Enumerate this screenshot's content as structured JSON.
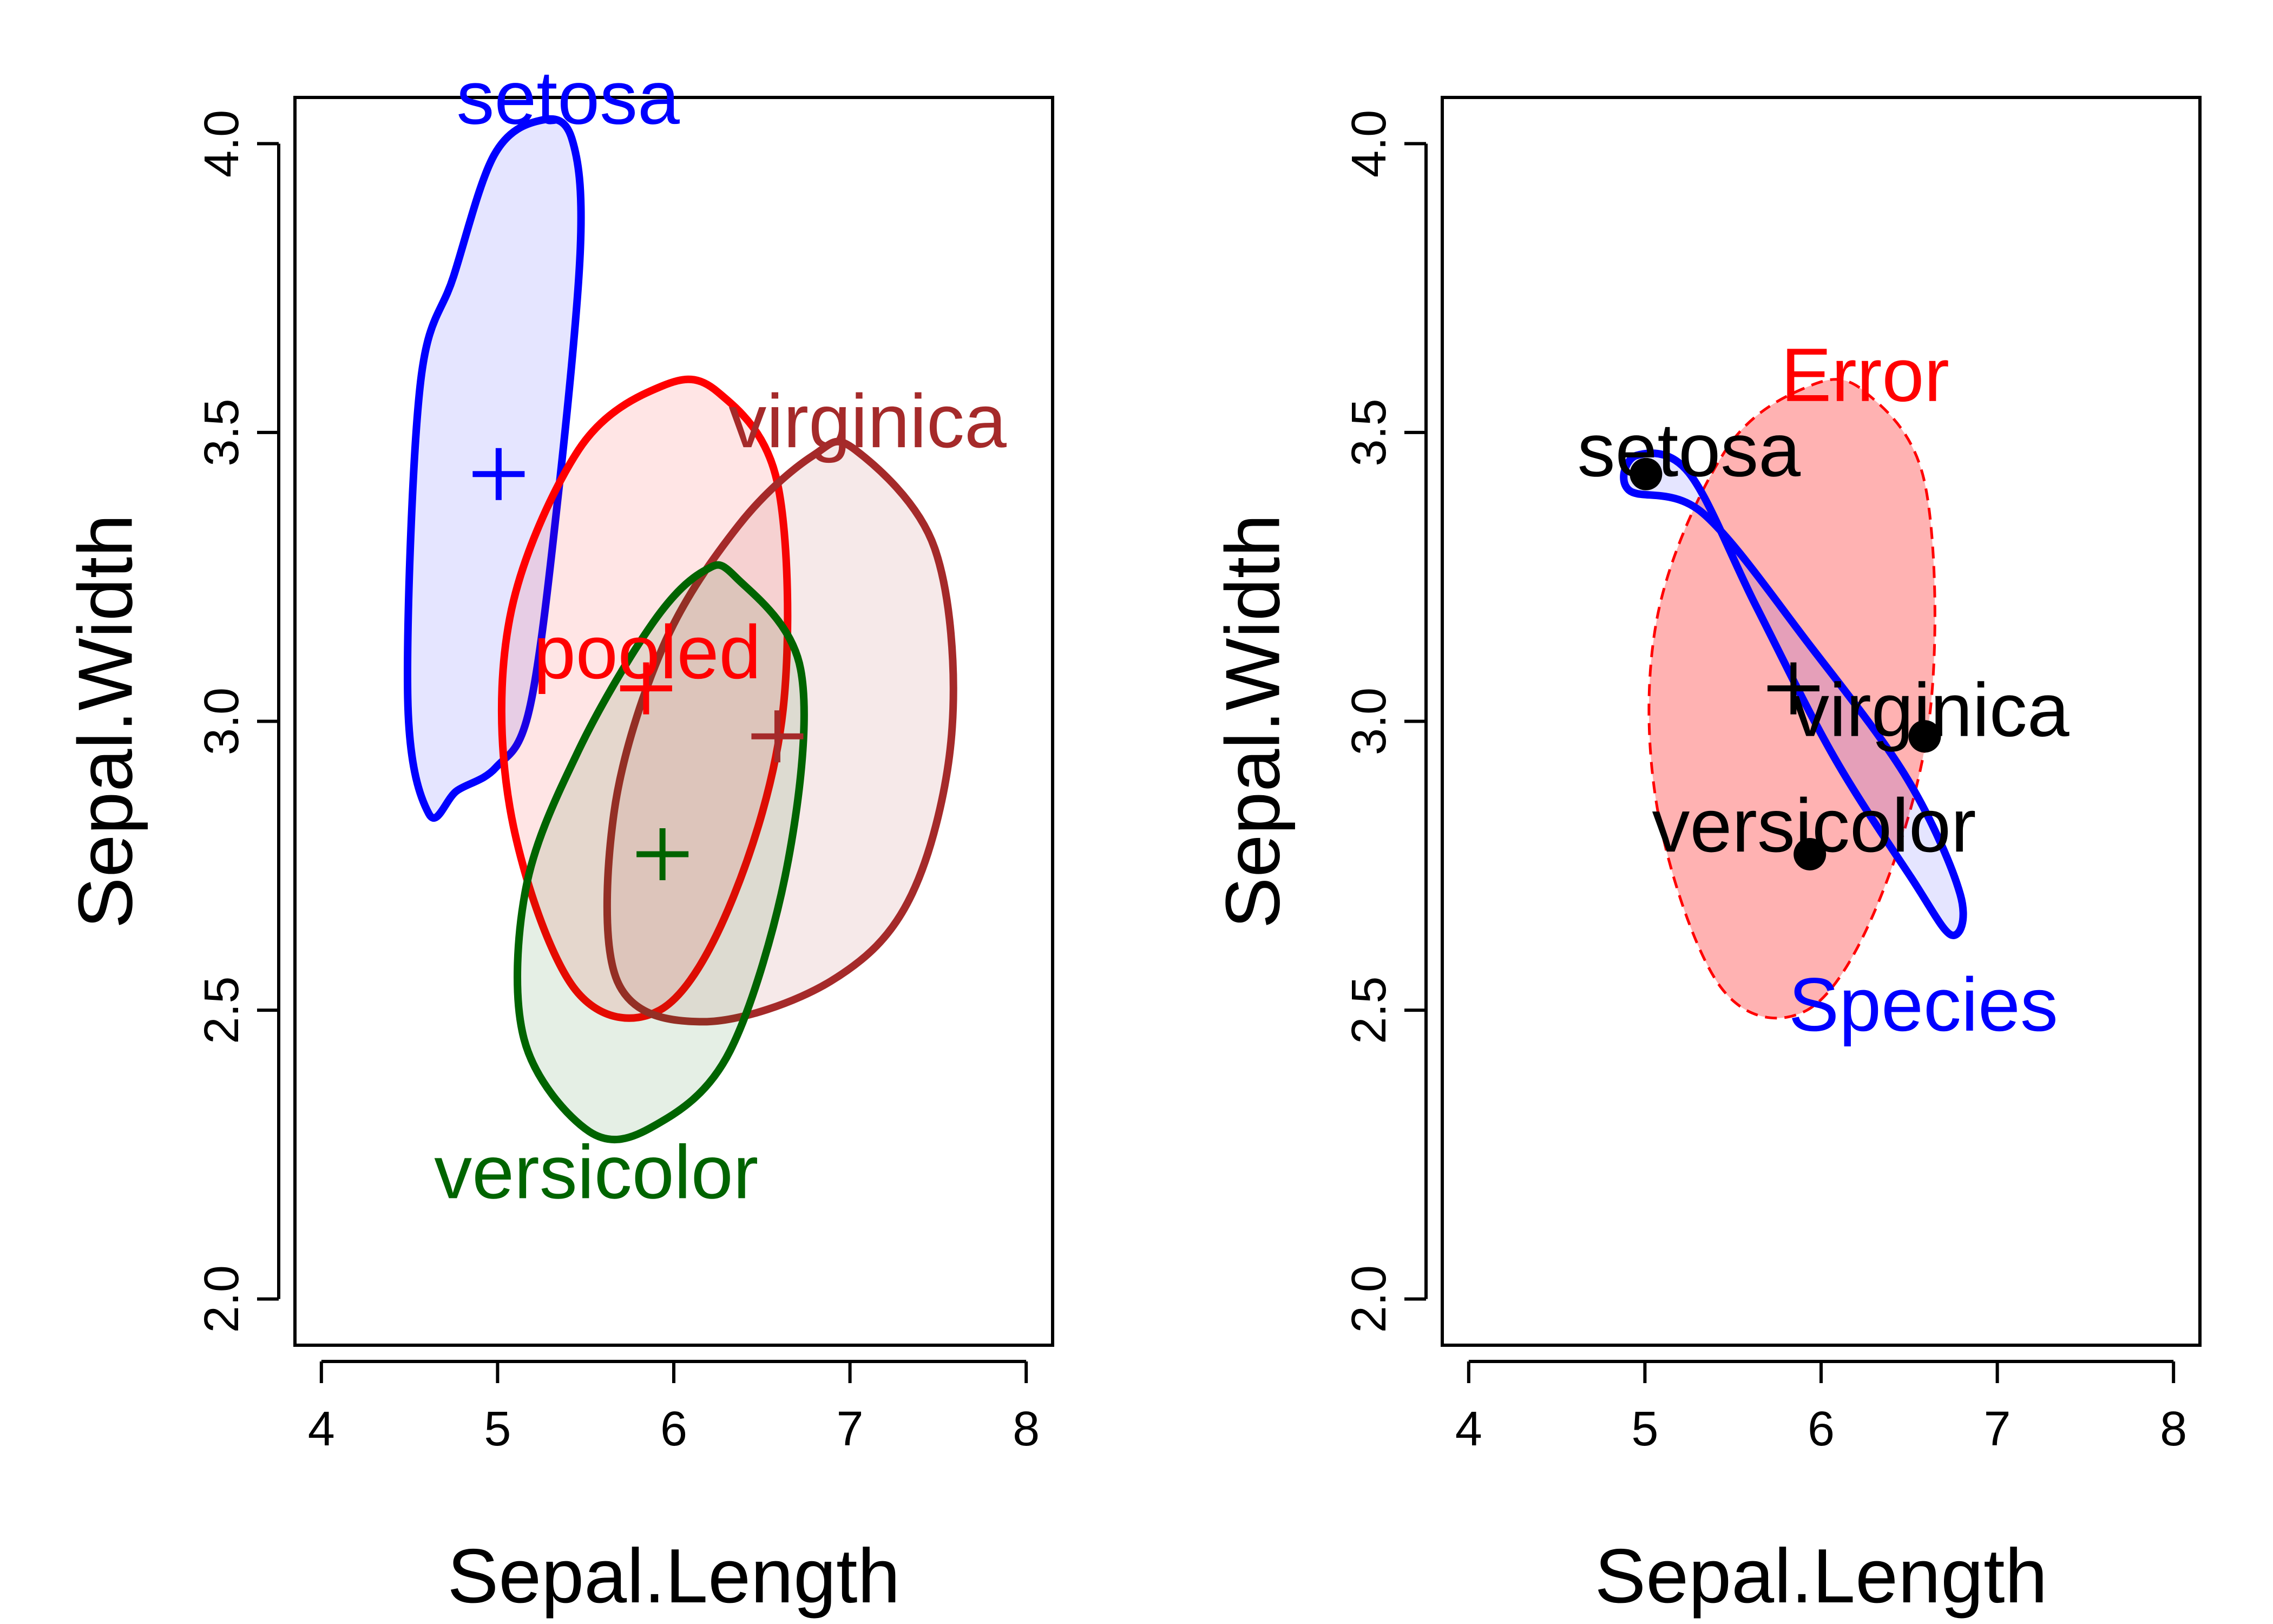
{
  "chart_data": [
    {
      "type": "scatter",
      "panel": "left",
      "title": "",
      "xlabel": "Sepal.Length",
      "ylabel": "Sepal.Width",
      "xlim": [
        3.85,
        8.15
      ],
      "ylim": [
        1.92,
        4.08
      ],
      "xticks": [
        "4",
        "5",
        "6",
        "7",
        "8"
      ],
      "yticks": [
        "2.0",
        "2.5",
        "3.0",
        "3.5",
        "4.0"
      ],
      "grid": false,
      "series": [
        {
          "name": "setosa",
          "color": "#0000ff",
          "fill": "rgba(0,0,255,0.10)",
          "center": [
            5.006,
            3.428
          ],
          "label": "setosa",
          "label_at": [
            5.4,
            4.08
          ],
          "ellipse": [
            [
              5.42,
              4.01
            ],
            [
              5.47,
              3.82
            ],
            [
              5.34,
              3.38
            ],
            [
              5.18,
              3.02
            ],
            [
              4.99,
              2.92
            ],
            [
              4.77,
              2.88
            ],
            [
              4.61,
              2.84
            ],
            [
              4.49,
              3.04
            ],
            [
              4.56,
              3.58
            ],
            [
              4.75,
              3.77
            ],
            [
              4.98,
              3.98
            ],
            [
              5.24,
              4.04
            ]
          ]
        },
        {
          "name": "pooled",
          "color": "#ff0000",
          "fill": "rgba(255,0,0,0.10)",
          "center": [
            5.843,
            3.057
          ],
          "label": "pooled",
          "label_at": [
            5.85,
            3.12
          ],
          "ellipse": [
            [
              6.25,
              3.57
            ],
            [
              6.59,
              3.41
            ],
            [
              6.62,
              3.02
            ],
            [
              6.33,
              2.69
            ],
            [
              5.92,
              2.5
            ],
            [
              5.43,
              2.54
            ],
            [
              5.07,
              2.85
            ],
            [
              5.07,
              3.18
            ],
            [
              5.46,
              3.47
            ],
            [
              5.93,
              3.58
            ]
          ]
        },
        {
          "name": "virginica",
          "color": "#a52a2a",
          "fill": "rgba(165,42,42,0.10)",
          "center": [
            6.588,
            2.974
          ],
          "label": "virginica",
          "label_at": [
            7.1,
            3.52
          ],
          "ellipse": [
            [
              7.03,
              3.47
            ],
            [
              7.48,
              3.3
            ],
            [
              7.58,
              2.99
            ],
            [
              7.35,
              2.7
            ],
            [
              6.89,
              2.55
            ],
            [
              6.17,
              2.48
            ],
            [
              5.68,
              2.55
            ],
            [
              5.66,
              2.84
            ],
            [
              5.94,
              3.13
            ],
            [
              6.37,
              3.34
            ],
            [
              6.79,
              3.46
            ]
          ]
        },
        {
          "name": "versicolor",
          "color": "#006400",
          "fill": "rgba(0,100,0,0.10)",
          "center": [
            5.936,
            2.77
          ],
          "label": "versicolor",
          "label_at": [
            5.56,
            2.22
          ],
          "ellipse": [
            [
              6.35,
              3.25
            ],
            [
              6.72,
              3.09
            ],
            [
              6.65,
              2.76
            ],
            [
              6.32,
              2.43
            ],
            [
              5.89,
              2.3
            ],
            [
              5.52,
              2.29
            ],
            [
              5.15,
              2.45
            ],
            [
              5.16,
              2.71
            ],
            [
              5.46,
              2.95
            ],
            [
              5.88,
              3.17
            ],
            [
              6.17,
              3.26
            ]
          ]
        }
      ],
      "markers": [
        {
          "name": "setosa",
          "symbol": "plus",
          "x": 5.006,
          "y": 3.428,
          "color": "#0000ff"
        },
        {
          "name": "pooled",
          "symbol": "plus",
          "x": 5.843,
          "y": 3.057,
          "color": "#ff0000"
        },
        {
          "name": "virginica",
          "symbol": "plus",
          "x": 6.588,
          "y": 2.974,
          "color": "#a52a2a"
        },
        {
          "name": "versicolor",
          "symbol": "plus",
          "x": 5.936,
          "y": 2.77,
          "color": "#006400"
        }
      ]
    },
    {
      "type": "scatter",
      "panel": "right",
      "title": "",
      "xlabel": "Sepal.Length",
      "ylabel": "Sepal.Width",
      "xlim": [
        3.85,
        8.15
      ],
      "ylim": [
        1.92,
        4.08
      ],
      "xticks": [
        "4",
        "5",
        "6",
        "7",
        "8"
      ],
      "yticks": [
        "2.0",
        "2.5",
        "3.0",
        "3.5",
        "4.0"
      ],
      "grid": false,
      "series": [
        {
          "name": "Error",
          "color": "#ff0000",
          "fill": "rgba(255,0,0,0.30)",
          "dashed": true,
          "label": "Error",
          "label_at": [
            6.25,
            3.6
          ],
          "ellipse": [
            [
              6.25,
              3.57
            ],
            [
              6.59,
              3.41
            ],
            [
              6.62,
              3.02
            ],
            [
              6.33,
              2.69
            ],
            [
              5.92,
              2.5
            ],
            [
              5.43,
              2.54
            ],
            [
              5.07,
              2.85
            ],
            [
              5.07,
              3.18
            ],
            [
              5.46,
              3.47
            ],
            [
              5.93,
              3.58
            ]
          ]
        },
        {
          "name": "Species",
          "color": "#0000ff",
          "fill": "rgba(0,0,255,0.10)",
          "dashed": false,
          "label": "Species",
          "label_at": [
            6.58,
            2.51
          ],
          "ellipse": [
            [
              4.95,
              3.46
            ],
            [
              5.25,
              3.43
            ],
            [
              5.63,
              3.2
            ],
            [
              6.07,
              2.94
            ],
            [
              6.51,
              2.73
            ],
            [
              6.74,
              2.63
            ],
            [
              6.79,
              2.7
            ],
            [
              6.49,
              2.9
            ],
            [
              5.94,
              3.13
            ],
            [
              5.33,
              3.36
            ],
            [
              4.91,
              3.4
            ]
          ]
        }
      ],
      "markers": [
        {
          "name": "grand-mean",
          "symbol": "plus",
          "x": 5.843,
          "y": 3.057,
          "color": "#000000"
        }
      ],
      "points": [
        {
          "name": "setosa",
          "x": 5.006,
          "y": 3.428,
          "label": "setosa",
          "label_at": [
            5.25,
            3.47
          ]
        },
        {
          "name": "virginica",
          "x": 6.588,
          "y": 2.974,
          "label": "virginica",
          "label_at": [
            6.62,
            3.02
          ]
        },
        {
          "name": "versicolor",
          "x": 5.936,
          "y": 2.77,
          "label": "versicolor",
          "label_at": [
            5.96,
            2.82
          ]
        }
      ]
    }
  ]
}
